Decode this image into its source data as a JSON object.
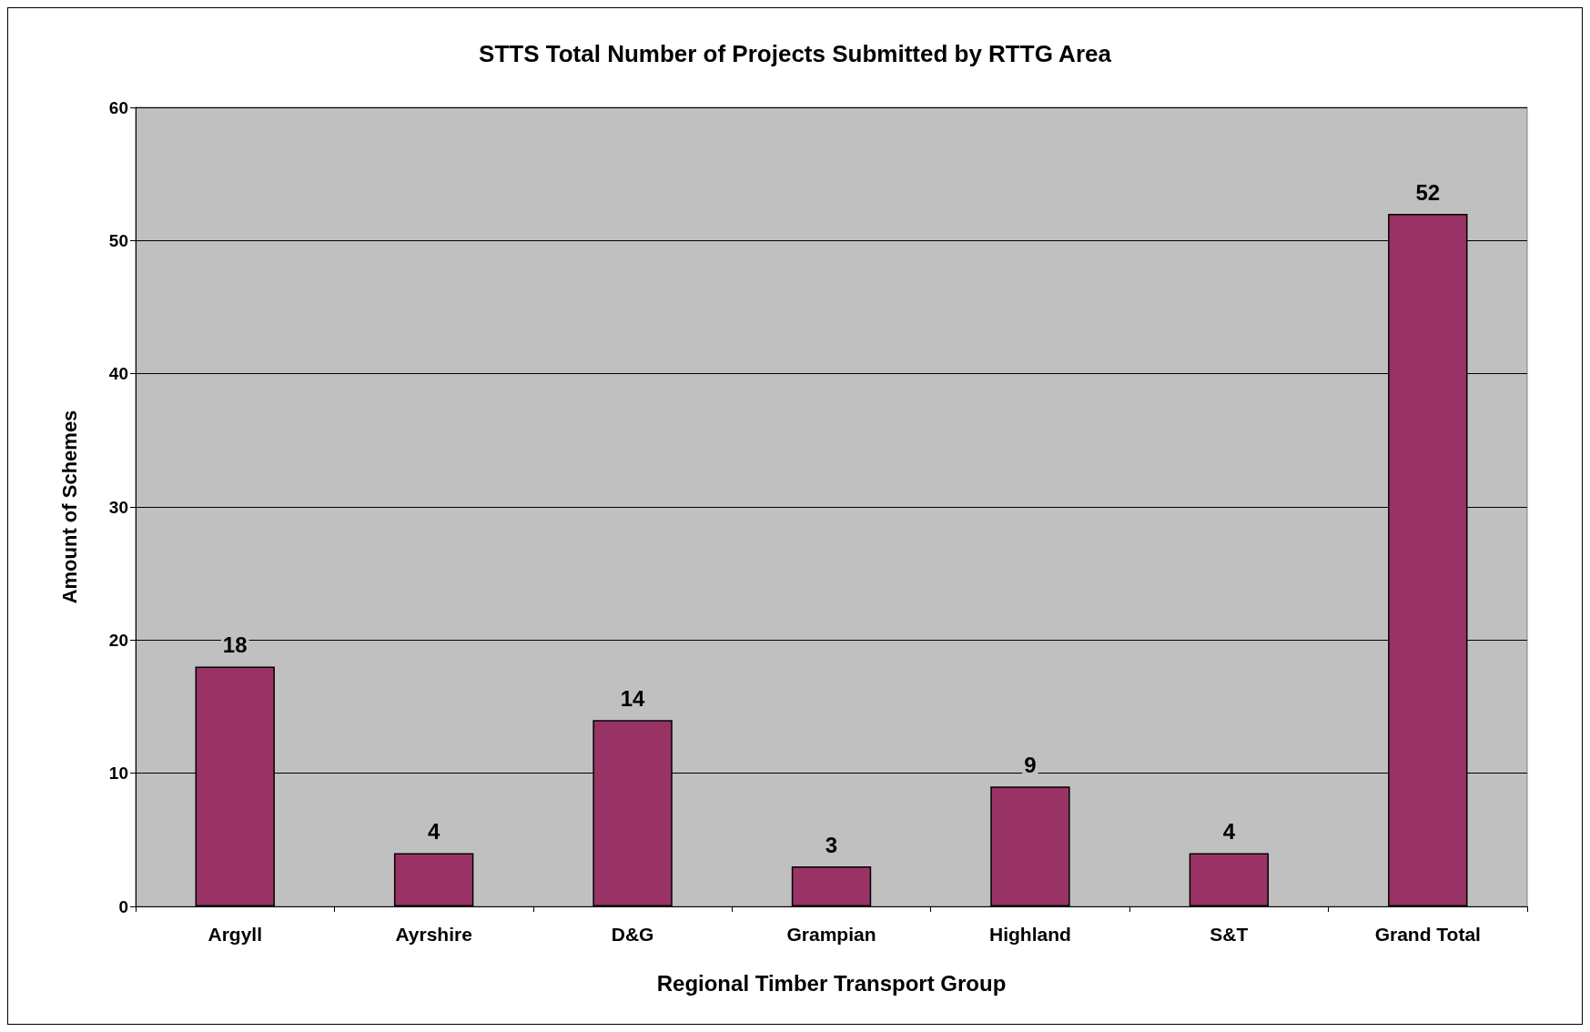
{
  "chart_data": {
    "type": "bar",
    "title": "STTS Total Number of Projects Submitted by RTTG Area",
    "xlabel": "Regional Timber Transport Group",
    "ylabel": "Amount of Schemes",
    "categories": [
      "Argyll",
      "Ayrshire",
      "D&G",
      "Grampian",
      "Highland",
      "S&T",
      "Grand Total"
    ],
    "values": [
      18,
      4,
      14,
      3,
      9,
      4,
      52
    ],
    "color": "#993366",
    "ylim": [
      0,
      60
    ],
    "yticks": [
      0,
      10,
      20,
      30,
      40,
      50,
      60
    ],
    "grid": "y",
    "data_labels": true
  }
}
